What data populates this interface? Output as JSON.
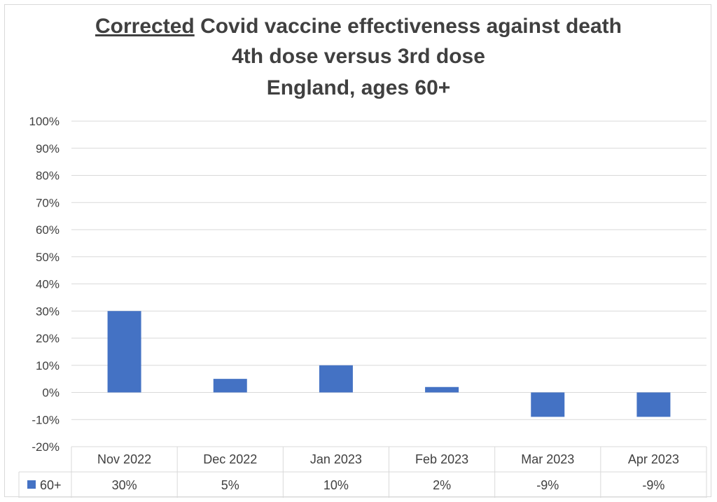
{
  "chart_data": {
    "type": "bar",
    "title_lines": [
      {
        "underlined": "Corrected",
        "rest": " Covid vaccine effectiveness against death"
      },
      {
        "underlined": "",
        "rest": "4th dose versus 3rd dose"
      },
      {
        "underlined": "",
        "rest": "England, ages 60+"
      }
    ],
    "categories": [
      "Nov 2022",
      "Dec 2022",
      "Jan 2023",
      "Feb 2023",
      "Mar 2023",
      "Apr 2023"
    ],
    "series": [
      {
        "name": "60+",
        "values": [
          30,
          5,
          10,
          2,
          -9,
          -9
        ],
        "labels": [
          "30%",
          "5%",
          "10%",
          "2%",
          "-9%",
          "-9%"
        ],
        "color": "#4472c4"
      }
    ],
    "ylim": [
      -20,
      100
    ],
    "y_ticks": [
      -20,
      -10,
      0,
      10,
      20,
      30,
      40,
      50,
      60,
      70,
      80,
      90,
      100
    ],
    "y_tick_labels": [
      "-20%",
      "-10%",
      "0%",
      "10%",
      "20%",
      "30%",
      "40%",
      "50%",
      "60%",
      "70%",
      "80%",
      "90%",
      "100%"
    ],
    "grid": true,
    "legend": "data-table-bottom",
    "gridline_color": "#d9d9d9"
  }
}
